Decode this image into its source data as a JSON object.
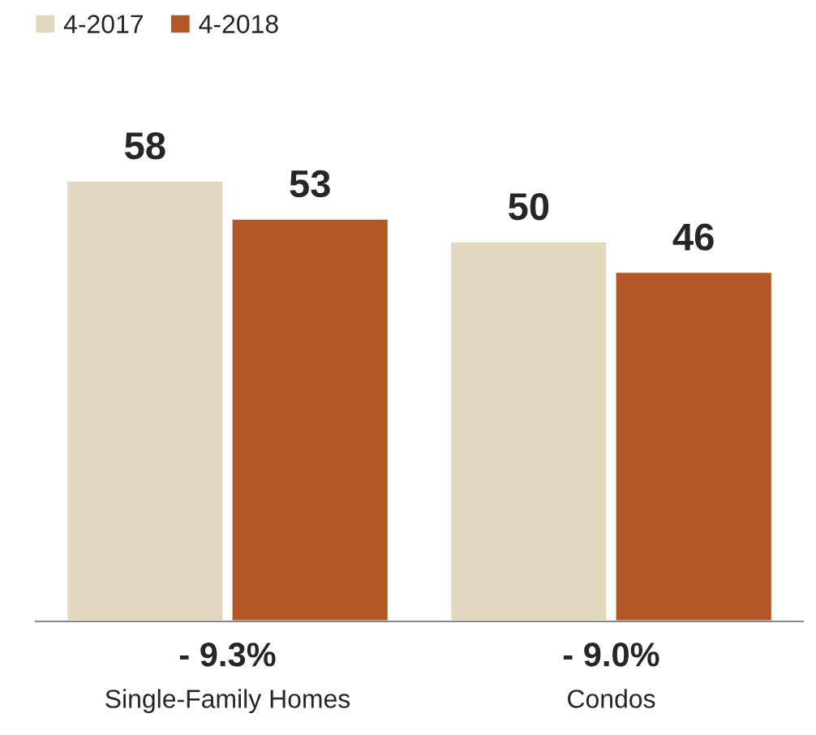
{
  "chart_data": {
    "type": "bar",
    "categories": [
      "Single-Family Homes",
      "Condos"
    ],
    "series": [
      {
        "name": "4-2017",
        "color": "#e2d7c0",
        "values": [
          58,
          50
        ]
      },
      {
        "name": "4-2018",
        "color": "#b35726",
        "values": [
          53,
          46
        ]
      }
    ],
    "data_labels": true,
    "relative": false,
    "legend": "top left",
    "grid": false,
    "annotations": [
      "- 9.3%",
      "- 9.0%"
    ]
  }
}
